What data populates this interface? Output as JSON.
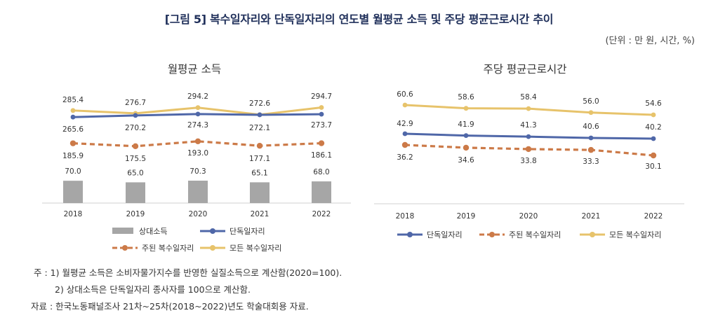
{
  "figure": {
    "title": "[그림 5] 복수일자리와 단독일자리의 연도별 월평균 소득 및 주당 평균근로시간 추이",
    "unit": "(단위 : 만 원, 시간, %)"
  },
  "chart_data": [
    {
      "type": "bar+line",
      "title": "월평균 소득",
      "categories": [
        "2018",
        "2019",
        "2020",
        "2021",
        "2022"
      ],
      "series": [
        {
          "name": "모든 복수일자리",
          "kind": "line",
          "style": "solid",
          "color": "#e7c36b",
          "values": [
            285.4,
            276.7,
            294.2,
            272.6,
            294.7
          ],
          "labels": [
            "285.4",
            "276.7",
            "294.2",
            "272.6",
            "294.7"
          ]
        },
        {
          "name": "단독일자리",
          "kind": "line",
          "style": "solid",
          "color": "#4f67a8",
          "values": [
            265.6,
            270.2,
            274.3,
            272.1,
            273.7
          ],
          "labels": [
            "265.6",
            "270.2",
            "274.3",
            "272.1",
            "273.7"
          ]
        },
        {
          "name": "주된 복수일자리",
          "kind": "line",
          "style": "dashed",
          "color": "#cc7a48",
          "values": [
            185.9,
            175.5,
            193.0,
            177.1,
            186.1
          ],
          "labels": [
            "185.9",
            "175.5",
            "193.0",
            "177.1",
            "186.1"
          ]
        },
        {
          "name": "상대소득",
          "kind": "bar",
          "color": "#a6a6a6",
          "values": [
            70.0,
            65.0,
            70.3,
            65.1,
            68.0
          ],
          "labels": [
            "70.0",
            "65.0",
            "70.3",
            "65.1",
            "68.0"
          ]
        }
      ],
      "legend_order": [
        "상대소득",
        "단독일자리",
        "주된 복수일자리",
        "모든 복수일자리"
      ],
      "legend_position": "bottom"
    },
    {
      "type": "line",
      "title": "주당  평균근로시간",
      "categories": [
        "2018",
        "2019",
        "2020",
        "2021",
        "2022"
      ],
      "series": [
        {
          "name": "모든 복수일자리",
          "kind": "line",
          "style": "solid",
          "color": "#e7c36b",
          "values": [
            60.6,
            58.6,
            58.4,
            56.0,
            54.6
          ],
          "labels": [
            "60.6",
            "58.6",
            "58.4",
            "56.0",
            "54.6"
          ]
        },
        {
          "name": "단독일자리",
          "kind": "line",
          "style": "solid",
          "color": "#4f67a8",
          "values": [
            42.9,
            41.9,
            41.3,
            40.6,
            40.2
          ],
          "labels": [
            "42.9",
            "41.9",
            "41.3",
            "40.6",
            "40.2"
          ]
        },
        {
          "name": "주된 복수일자리",
          "kind": "line",
          "style": "dashed",
          "color": "#cc7a48",
          "values": [
            36.2,
            34.6,
            33.8,
            33.3,
            30.1
          ],
          "labels": [
            "36.2",
            "34.6",
            "33.8",
            "33.3",
            "30.1"
          ]
        }
      ],
      "legend_order": [
        "단독일자리",
        "주된 복수일자리",
        "모든 복수일자리"
      ],
      "legend_position": "bottom"
    }
  ],
  "notes": {
    "note1": "주 : 1) 월평균 소득은 소비자물가지수를 반영한 실질소득으로 계산함(2020=100).",
    "note2": "2) 상대소득은 단독일자리 종사자를 100으로 계산함.",
    "source": "자료 : 한국노동패널조사 21차~25차(2018~2022)년도 학술대회용 자료."
  }
}
